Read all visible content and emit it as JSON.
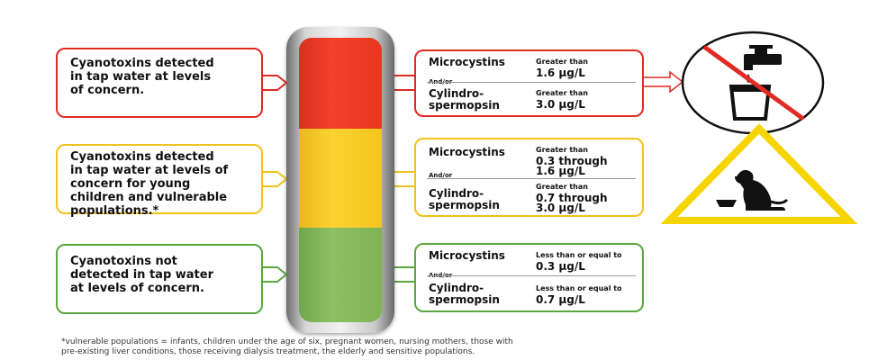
{
  "levels": {
    "red": {
      "description": "Cyanotoxins detected in tap water at levels of concern.",
      "lines": [
        "Cyanotoxins detected",
        "in tap water at levels",
        "of concern."
      ],
      "microcystins": {
        "name": "Microcystins",
        "qualifier": "Greater than",
        "value": "1.6 µg/L"
      },
      "and_or": "And/or",
      "cylindrospermopsin": {
        "name_line1": "Cylindro-",
        "name_line2": "spermopsin",
        "qualifier": "Greater than",
        "value": "3.0 µg/L"
      }
    },
    "yellow": {
      "lines": [
        "Cyanotoxins detected",
        "in tap water at levels of",
        "concern for young",
        "children and vulnerable",
        "populations.*"
      ],
      "microcystins": {
        "name": "Microcystins",
        "qualifier": "Greater than",
        "value_line1": "0.3 through",
        "value_line2": "1.6 µg/L"
      },
      "and_or": "And/or",
      "cylindrospermopsin": {
        "name_line1": "Cylindro-",
        "name_line2": "spermopsin",
        "qualifier": "Greater than",
        "value_line1": "0.7 through",
        "value_line2": "3.0 µg/L"
      }
    },
    "green": {
      "lines": [
        "Cyanotoxins not",
        "detected in tap water",
        "at levels of concern."
      ],
      "microcystins": {
        "name": "Microcystins",
        "qualifier": "Less than or equal to",
        "value": "0.3 µg/L"
      },
      "and_or": "And/or",
      "cylindrospermopsin": {
        "name_line1": "Cylindro-",
        "name_line2": "spermopsin",
        "qualifier": "Less than or equal to",
        "value": "0.7 µg/L"
      }
    }
  },
  "footnote": {
    "line1": "*vulnerable populations = infants, children under the age of six, pregnant women, nursing mothers, those with",
    "line2": "pre-existing liver conditions, those receiving dialysis treatment, the elderly and sensitive populations."
  },
  "icons": {
    "no_drinking": "no-tap-water-icon",
    "pet_warning": "pet-warning-icon"
  },
  "colors": {
    "red": "#e02a24",
    "yellow": "#f2c21c",
    "green": "#5aa640"
  }
}
